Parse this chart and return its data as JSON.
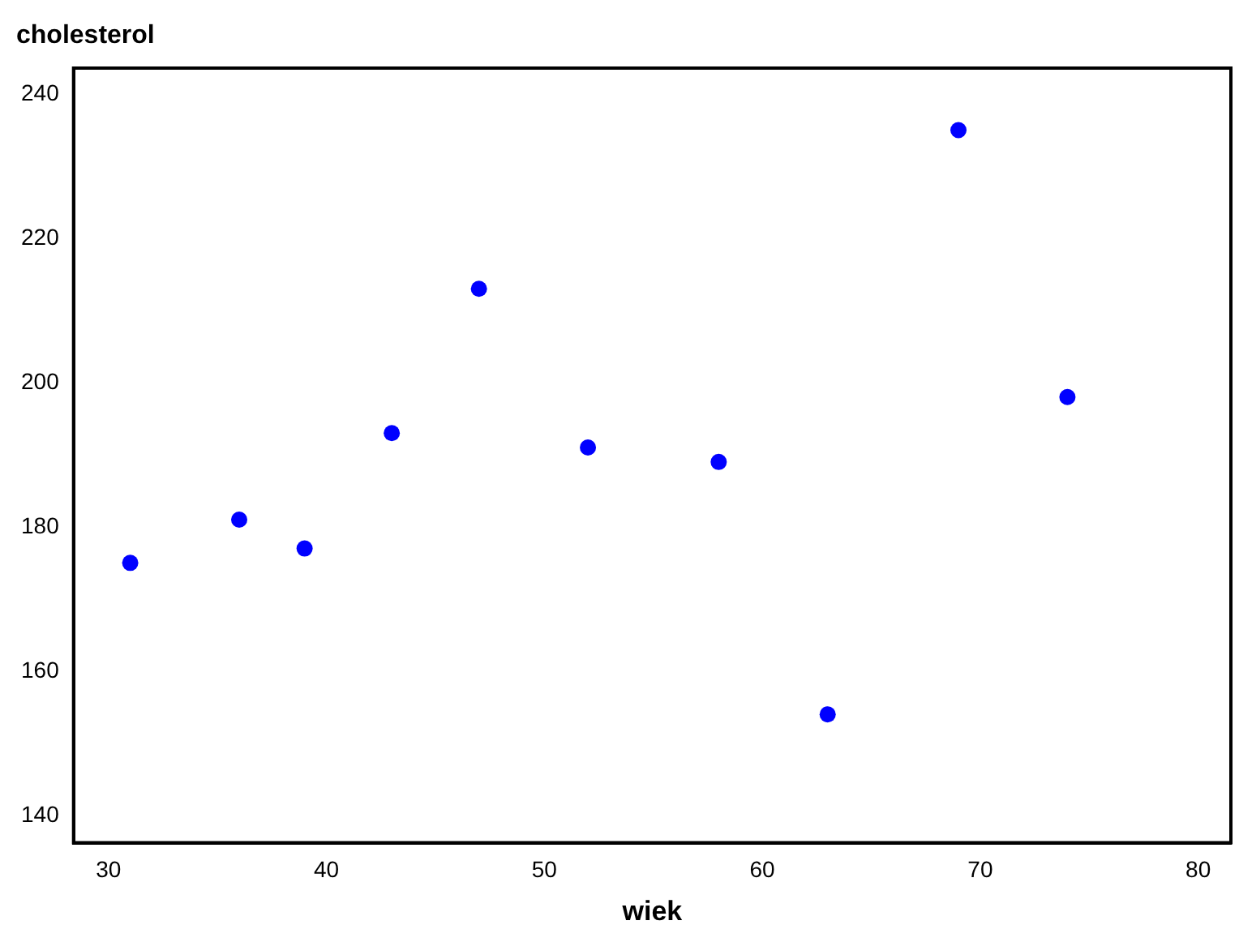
{
  "chart_data": {
    "type": "scatter",
    "xlabel": "wiek",
    "ylabel": "cholesterol",
    "x": [
      31,
      36,
      39,
      43,
      47,
      52,
      58,
      63,
      69,
      74
    ],
    "series": [
      {
        "color": "#0000ff",
        "values": [
          175,
          181,
          177,
          193,
          213,
          191,
          189,
          154,
          235,
          198
        ]
      }
    ],
    "xlim": [
      28.4,
      81.5
    ],
    "xticks": [
      30,
      40,
      50,
      60,
      70,
      80
    ],
    "ylim": [
      136.2,
      243.6
    ],
    "yticks": [
      140,
      160,
      180,
      200,
      220,
      240
    ],
    "grid": false,
    "legend": false,
    "marker": "circle"
  }
}
